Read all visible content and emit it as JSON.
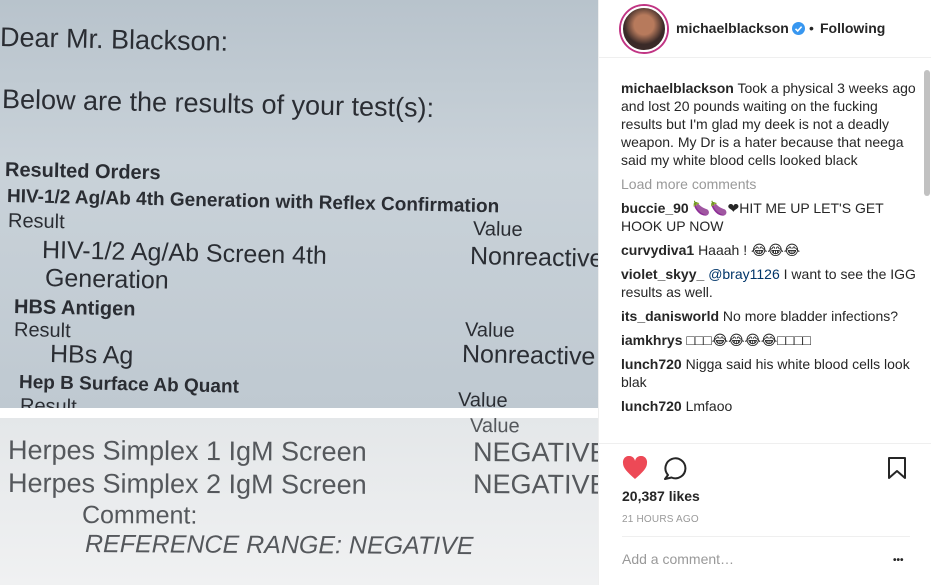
{
  "photo": {
    "top": [
      "Dear Mr. Blackson:",
      "Below are the results of your test(s):",
      "Resulted Orders",
      "HIV-1/2 Ag/Ab 4th Generation with Reflex Confirmation",
      "Result",
      "Value",
      "HIV-1/2 Ag/Ab Screen 4th",
      "Generation",
      "Nonreactive",
      "HBS Antigen",
      "Result",
      "Value",
      "HBs Ag",
      "Nonreactive",
      "Hep B Surface Ab Quant",
      "Result",
      "Value"
    ],
    "bottom": [
      "Value",
      "Herpes Simplex 1 IgM Screen",
      "NEGATIVE",
      "Herpes Simplex 2 IgM Screen",
      "NEGATIVE",
      "Comment:",
      "REFERENCE RANGE: NEGATIVE"
    ]
  },
  "post": {
    "username": "michaelblackson",
    "separator": "•",
    "follow": "Following",
    "caption": "Took a physical 3 weeks ago and lost 20 pounds waiting on the fucking results but I'm glad my deek is not a deadly weapon. My Dr is a hater because that neega said my white blood cells looked black",
    "load_more": "Load more comments",
    "comments": [
      {
        "user": "buccie_90",
        "text": "🍆🍆❤HIT ME UP LET'S GET HOOK UP NOW"
      },
      {
        "user": "curvydiva1",
        "text": "Haaah ! 😂😂😂"
      },
      {
        "user": "violet_skyy_",
        "mention": "@bray1126",
        "text": "I want to see the IGG results as well."
      },
      {
        "user": "its_danisworld",
        "text": "No more bladder infections?"
      },
      {
        "user": "iamkhrys",
        "text": "□□□😂😂😂😂□□□□"
      },
      {
        "user": "lunch720",
        "text": "Nigga said his white blood cells look blak"
      },
      {
        "user": "lunch720",
        "text": "Lmfaoo"
      }
    ],
    "likes": "20,387 likes",
    "time": "21 HOURS AGO",
    "add_comment": "Add a comment…",
    "more": "•••"
  }
}
